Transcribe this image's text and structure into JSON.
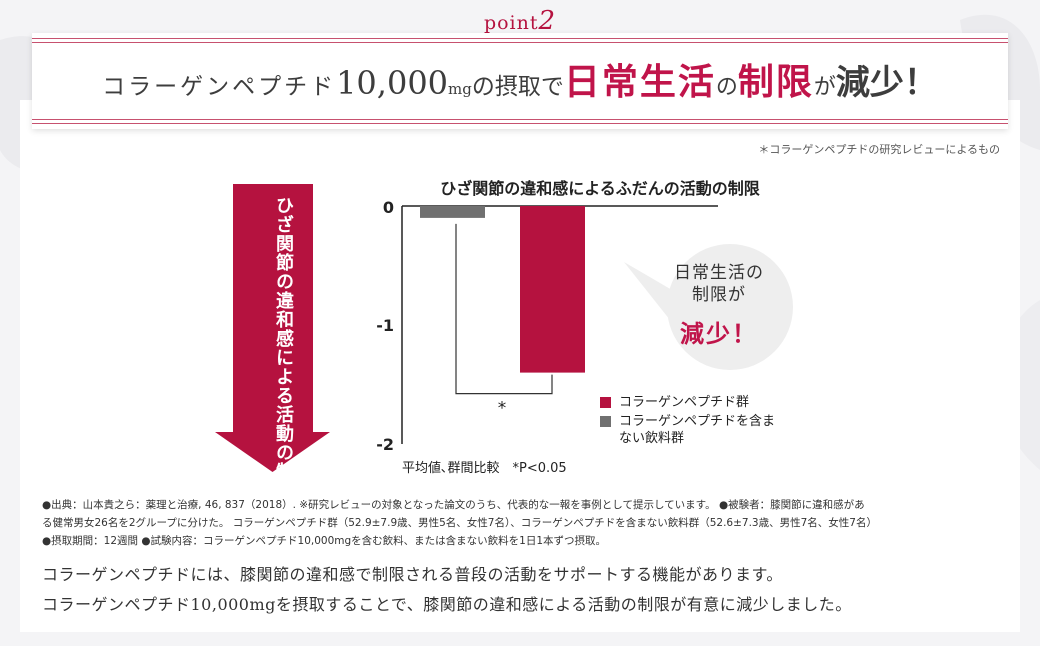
{
  "point": {
    "word": "point",
    "number": "2"
  },
  "headline": {
    "part1": "コラーゲンペプチド",
    "amount": "10,000",
    "unit": "mg",
    "part2": "の摂取で",
    "emph1": "日常生活",
    "part3": "の",
    "emph2": "制限",
    "part4": "が",
    "part5": "減少！"
  },
  "footnote": "＊コラーゲンペプチドの研究レビューによるもの",
  "arrow_label": "ひざ関節の違和感による活動の制限の減少",
  "bubble": {
    "line1": "日常生活の",
    "line2": "制限が",
    "line3": "減少！"
  },
  "chart_data": {
    "type": "bar",
    "title": "ひざ関節の違和感によるふだんの活動の制限",
    "ylim": [
      -2,
      0
    ],
    "yticks": [
      0,
      -1,
      -2
    ],
    "ytick_labels": [
      "0",
      "-1",
      "-2"
    ],
    "series": [
      {
        "name": "コラーゲンペプチド群",
        "value": -1.4,
        "color": "#b5123f"
      },
      {
        "name": "コラーゲンペプチドを含まない飲料群",
        "value": -0.1,
        "color": "#707070"
      }
    ],
    "significance": "*",
    "note": "平均値､群間比較",
    "p_value": "*P<0.05",
    "grid": false,
    "legend_position": "right"
  },
  "legend": {
    "item1": "コラーゲンペプチド群",
    "item2": "コラーゲンペプチドを含まない飲料群"
  },
  "axis_note": "平均値､群間比較　*P<0.05",
  "source": {
    "line1": "●出典：山本貴之ら：薬理と治療, 46, 837（2018）. ※研究レビューの対象となった論文のうち、代表的な一報を事例として提示しています。 ●被験者：膝関節に違和感があ",
    "line2": "る健常男女26名を2グループに分けた。 コラーゲンペプチド群（52.9±7.9歳、男性5名、女性7名）、コラーゲンペプチドを含まない飲料群（52.6±7.3歳、男性7名、女性7名）",
    "line3": "●摂取期間：12週間 ●試験内容：コラーゲンペプチド10,000mgを含む飲料、または含まない飲料を1日1本ずつ摂取。"
  },
  "body": {
    "line1": "コラーゲンペプチドには、膝関節の違和感で制限される普段の活動をサポートする機能があります。",
    "line2": "コラーゲンペプチド10,000mgを摂取することで、膝関節の違和感による活動の制限が有意に減少しました。"
  }
}
